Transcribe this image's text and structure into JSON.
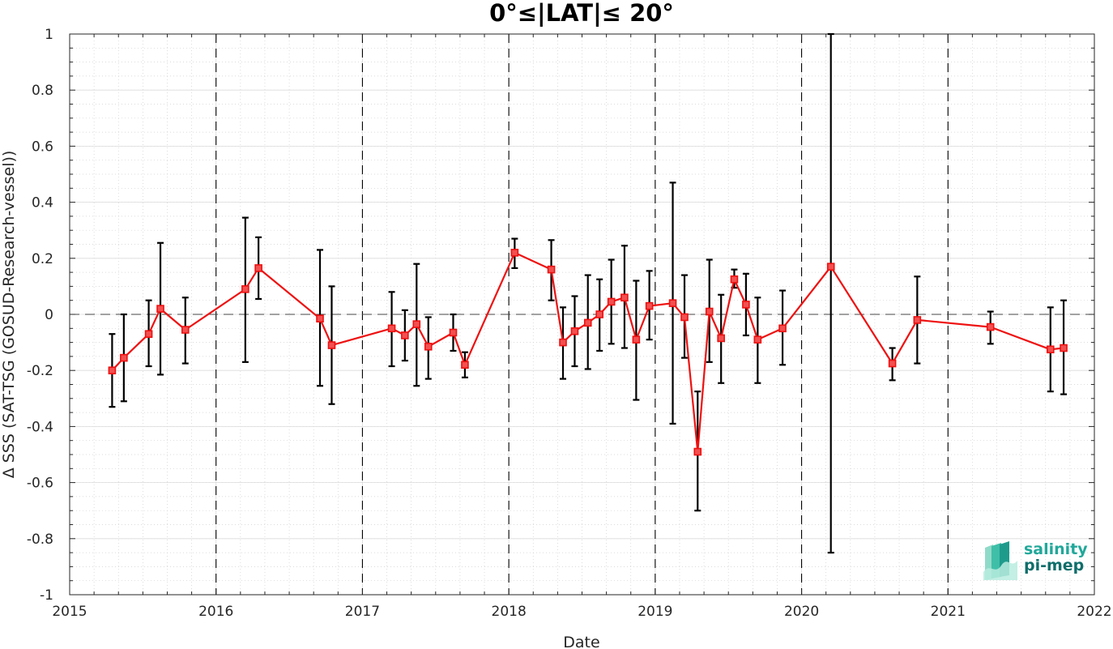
{
  "chart_data": {
    "type": "line",
    "title": "0°≤|LAT|≤ 20°",
    "xlabel": "Date",
    "ylabel": "Δ SSS (SAT-TSG (GOSUD-Research-vessel))",
    "xlim": [
      2015,
      2022
    ],
    "ylim": [
      -1,
      1
    ],
    "x_ticks": [
      "2015",
      "2016",
      "2017",
      "2018",
      "2019",
      "2020",
      "2021",
      "2022"
    ],
    "y_ticks": [
      "1",
      "0.8",
      "0.6",
      "0.4",
      "0.2",
      "0",
      "-0.2",
      "-0.4",
      "-0.6",
      "-0.8",
      "-1"
    ],
    "year_dividers": [
      2016,
      2017,
      2018,
      2019,
      2020,
      2021
    ],
    "zero_line": 0,
    "grid": true,
    "minor_grid": true,
    "colors": {
      "series": "#ee1111",
      "error_bars": "#000000",
      "reference_lines": "#000000"
    },
    "series": [
      {
        "marker": "square",
        "points": [
          {
            "x": 2015.29,
            "y": -0.2,
            "lo": -0.33,
            "hi": -0.07
          },
          {
            "x": 2015.37,
            "y": -0.155,
            "lo": -0.31,
            "hi": 0.0
          },
          {
            "x": 2015.54,
            "y": -0.07,
            "lo": -0.185,
            "hi": 0.05
          },
          {
            "x": 2015.62,
            "y": 0.02,
            "lo": -0.215,
            "hi": 0.255
          },
          {
            "x": 2015.79,
            "y": -0.055,
            "lo": -0.175,
            "hi": 0.06
          },
          {
            "x": 2016.2,
            "y": 0.09,
            "lo": -0.17,
            "hi": 0.345
          },
          {
            "x": 2016.29,
            "y": 0.165,
            "lo": 0.055,
            "hi": 0.275
          },
          {
            "x": 2016.71,
            "y": -0.015,
            "lo": -0.255,
            "hi": 0.23
          },
          {
            "x": 2016.79,
            "y": -0.11,
            "lo": -0.32,
            "hi": 0.1
          },
          {
            "x": 2017.2,
            "y": -0.05,
            "lo": -0.185,
            "hi": 0.08
          },
          {
            "x": 2017.29,
            "y": -0.075,
            "lo": -0.165,
            "hi": 0.015
          },
          {
            "x": 2017.37,
            "y": -0.035,
            "lo": -0.255,
            "hi": 0.18
          },
          {
            "x": 2017.45,
            "y": -0.115,
            "lo": -0.23,
            "hi": -0.01
          },
          {
            "x": 2017.62,
            "y": -0.065,
            "lo": -0.13,
            "hi": 0.0
          },
          {
            "x": 2017.7,
            "y": -0.18,
            "lo": -0.225,
            "hi": -0.135
          },
          {
            "x": 2018.04,
            "y": 0.22,
            "lo": 0.165,
            "hi": 0.27
          },
          {
            "x": 2018.29,
            "y": 0.16,
            "lo": 0.05,
            "hi": 0.265
          },
          {
            "x": 2018.37,
            "y": -0.1,
            "lo": -0.23,
            "hi": 0.025
          },
          {
            "x": 2018.45,
            "y": -0.06,
            "lo": -0.185,
            "hi": 0.065
          },
          {
            "x": 2018.54,
            "y": -0.03,
            "lo": -0.195,
            "hi": 0.14
          },
          {
            "x": 2018.62,
            "y": 0.0,
            "lo": -0.13,
            "hi": 0.125
          },
          {
            "x": 2018.7,
            "y": 0.045,
            "lo": -0.105,
            "hi": 0.195
          },
          {
            "x": 2018.79,
            "y": 0.06,
            "lo": -0.12,
            "hi": 0.245
          },
          {
            "x": 2018.87,
            "y": -0.09,
            "lo": -0.305,
            "hi": 0.12
          },
          {
            "x": 2018.96,
            "y": 0.03,
            "lo": -0.09,
            "hi": 0.155
          },
          {
            "x": 2019.12,
            "y": 0.04,
            "lo": -0.39,
            "hi": 0.47
          },
          {
            "x": 2019.2,
            "y": -0.01,
            "lo": -0.155,
            "hi": 0.14
          },
          {
            "x": 2019.29,
            "y": -0.49,
            "lo": -0.7,
            "hi": -0.275
          },
          {
            "x": 2019.37,
            "y": 0.01,
            "lo": -0.17,
            "hi": 0.195
          },
          {
            "x": 2019.45,
            "y": -0.085,
            "lo": -0.245,
            "hi": 0.07
          },
          {
            "x": 2019.54,
            "y": 0.125,
            "lo": 0.095,
            "hi": 0.16
          },
          {
            "x": 2019.62,
            "y": 0.035,
            "lo": -0.075,
            "hi": 0.145
          },
          {
            "x": 2019.7,
            "y": -0.09,
            "lo": -0.245,
            "hi": 0.06
          },
          {
            "x": 2019.87,
            "y": -0.05,
            "lo": -0.18,
            "hi": 0.085
          },
          {
            "x": 2020.2,
            "y": 0.17,
            "lo": -0.85,
            "hi": 1.0
          },
          {
            "x": 2020.62,
            "y": -0.175,
            "lo": -0.235,
            "hi": -0.12
          },
          {
            "x": 2020.79,
            "y": -0.02,
            "lo": -0.175,
            "hi": 0.135
          },
          {
            "x": 2021.29,
            "y": -0.045,
            "lo": -0.105,
            "hi": 0.01
          },
          {
            "x": 2021.7,
            "y": -0.125,
            "lo": -0.275,
            "hi": 0.025
          },
          {
            "x": 2021.79,
            "y": -0.12,
            "lo": -0.285,
            "hi": 0.05
          }
        ]
      }
    ]
  },
  "logo": {
    "line1": "salinity",
    "line2": "pi-mep",
    "icon": "salinity-wave-icon",
    "colors": {
      "line1": "#21a89a",
      "line2": "#0e6e6a",
      "icon_light": "#8fdac8",
      "icon_dark": "#1f9b8c"
    }
  }
}
